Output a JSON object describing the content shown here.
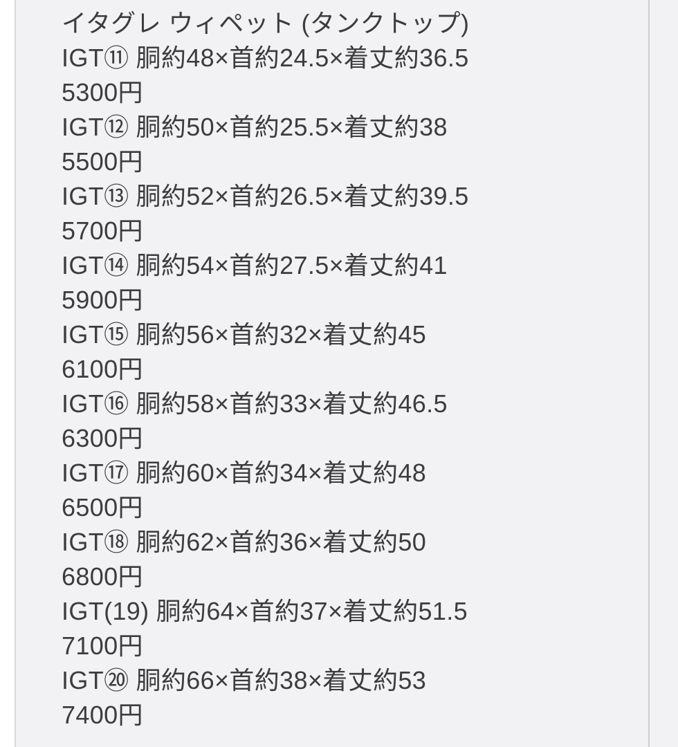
{
  "theme": {
    "panel_background": "#f2f2f4",
    "page_background": "#ffffff",
    "divider_color": "#d9d9db",
    "text_color": "#3c3c3e"
  },
  "listing": {
    "title": "イタグレ ウィペット (タンクトップ)",
    "items": [
      {
        "code": "IGT⑪",
        "spec": "胴約48×首約24.5×着丈約36.5",
        "price": "5300円"
      },
      {
        "code": "IGT⑫",
        "spec": "胴約50×首約25.5×着丈約38",
        "price": "5500円"
      },
      {
        "code": "IGT⑬",
        "spec": "胴約52×首約26.5×着丈約39.5",
        "price": "5700円"
      },
      {
        "code": "IGT⑭",
        "spec": "胴約54×首約27.5×着丈約41",
        "price": "5900円"
      },
      {
        "code": "IGT⑮",
        "spec": "胴約56×首約32×着丈約45",
        "price": "6100円"
      },
      {
        "code": "IGT⑯",
        "spec": "胴約58×首約33×着丈約46.5",
        "price": "6300円"
      },
      {
        "code": "IGT⑰",
        "spec": "胴約60×首約34×着丈約48",
        "price": "6500円"
      },
      {
        "code": "IGT⑱",
        "spec": "胴約62×首約36×着丈約50",
        "price": "6800円"
      },
      {
        "code": "IGT(19)",
        "spec": "胴約64×首約37×着丈約51.5",
        "price": "7100円"
      },
      {
        "code": "IGT⑳",
        "spec": "胴約66×首約38×着丈約53",
        "price": "7400円"
      }
    ]
  }
}
